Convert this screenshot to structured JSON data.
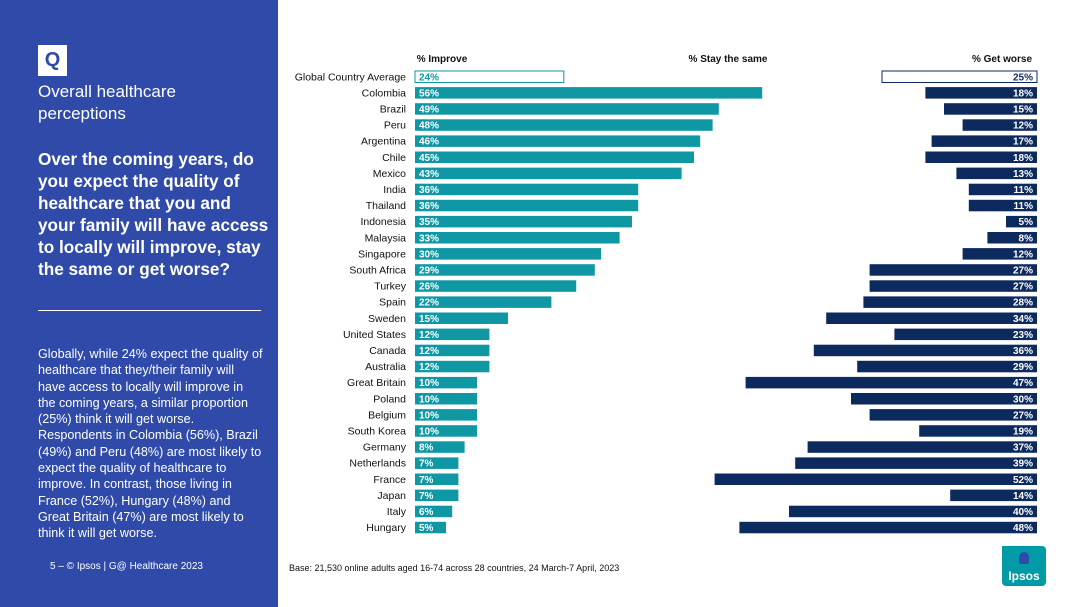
{
  "sidebar": {
    "badge": "Q",
    "title": "Overall healthcare perceptions",
    "question": "Over the coming years, do you expect the quality of healthcare that you and your family will have access to locally will improve, stay the same or get worse?",
    "summary": "Globally, while 24% expect the quality of healthcare that they/their family will have access to locally will improve in the coming years, a similar proportion (25%) think it will get worse. Respondents in Colombia (56%), Brazil (49%) and Peru (48%) are most likely to expect the quality of healthcare to improve. In contrast, those living in France (52%), Hungary (48%) and Great Britain (47%) are most likely to think it will get worse.",
    "footer": "5 –  © Ipsos | G@ Healthcare 2023"
  },
  "base_note": "Base: 21,530 online adults aged 16-74 across 28 countries, 24 March-7 April, 2023",
  "logo": {
    "text": "Ipsos"
  },
  "colors": {
    "sidebar": "#2f4aa8",
    "improve": "#0f98a4",
    "worse": "#0d2a5e",
    "white": "#ffffff"
  },
  "chart_data": {
    "type": "bar",
    "headers": {
      "improve": "% Improve",
      "same": "% Stay the same",
      "worse": "% Get worse"
    },
    "categories": [
      "Global Country Average",
      "Colombia",
      "Brazil",
      "Peru",
      "Argentina",
      "Chile",
      "Mexico",
      "India",
      "Thailand",
      "Indonesia",
      "Malaysia",
      "Singapore",
      "South Africa",
      "Turkey",
      "Spain",
      "Sweden",
      "United States",
      "Canada",
      "Australia",
      "Great Britain",
      "Poland",
      "Belgium",
      "South Korea",
      "Germany",
      "Netherlands",
      "France",
      "Japan",
      "Italy",
      "Hungary"
    ],
    "series": [
      {
        "name": "% Improve",
        "values": [
          24,
          56,
          49,
          48,
          46,
          45,
          43,
          36,
          36,
          35,
          33,
          30,
          29,
          26,
          22,
          15,
          12,
          12,
          12,
          10,
          10,
          10,
          10,
          8,
          7,
          7,
          7,
          6,
          5
        ]
      },
      {
        "name": "% Get worse",
        "values": [
          25,
          18,
          15,
          12,
          17,
          18,
          13,
          11,
          11,
          5,
          8,
          12,
          27,
          27,
          28,
          34,
          23,
          36,
          29,
          47,
          30,
          27,
          19,
          37,
          39,
          52,
          14,
          40,
          48
        ]
      }
    ],
    "value_suffix": "%",
    "xlim": [
      0,
      100
    ]
  }
}
